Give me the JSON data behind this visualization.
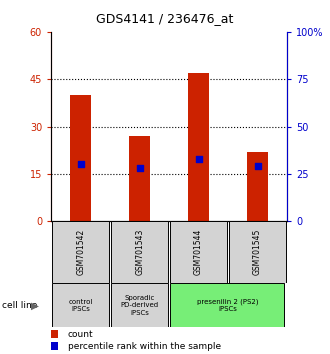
{
  "title": "GDS4141 / 236476_at",
  "samples": [
    "GSM701542",
    "GSM701543",
    "GSM701544",
    "GSM701545"
  ],
  "count_values": [
    40,
    27,
    47,
    22
  ],
  "percentile_values": [
    30,
    28,
    33,
    29
  ],
  "count_color": "#cc2200",
  "percentile_color": "#0000cc",
  "left_ylim": [
    0,
    60
  ],
  "right_ylim": [
    0,
    100
  ],
  "left_yticks": [
    0,
    15,
    30,
    45,
    60
  ],
  "right_yticks": [
    0,
    25,
    50,
    75,
    100
  ],
  "right_yticklabels": [
    "0",
    "25",
    "50",
    "75",
    "100%"
  ],
  "legend_count_label": "count",
  "legend_pct_label": "percentile rank within the sample",
  "cell_line_label": "cell line",
  "bar_width": 0.35,
  "bar_color": "#cc2200",
  "marker_color": "#0000cc",
  "background_color": "#ffffff",
  "sample_box_color": "#d3d3d3",
  "green_color": "#77ee77",
  "gray_color": "#d3d3d3"
}
